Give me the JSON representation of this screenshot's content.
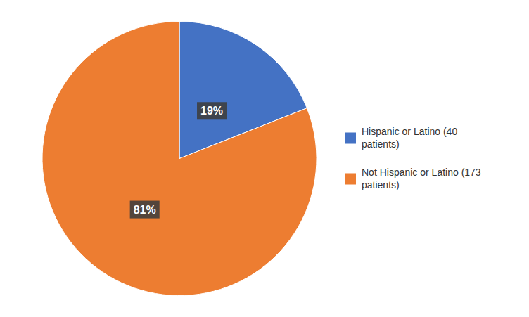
{
  "chart_data": {
    "type": "pie",
    "categories": [
      "Hispanic or Latino (40\npatients)",
      "Not Hispanic or Latino (173\npatients)"
    ],
    "values": [
      19,
      81
    ],
    "value_labels": [
      "19%",
      "81%"
    ],
    "colors": [
      "#4472C4",
      "#ED7D31"
    ],
    "data_labels": true,
    "legend": "right"
  }
}
